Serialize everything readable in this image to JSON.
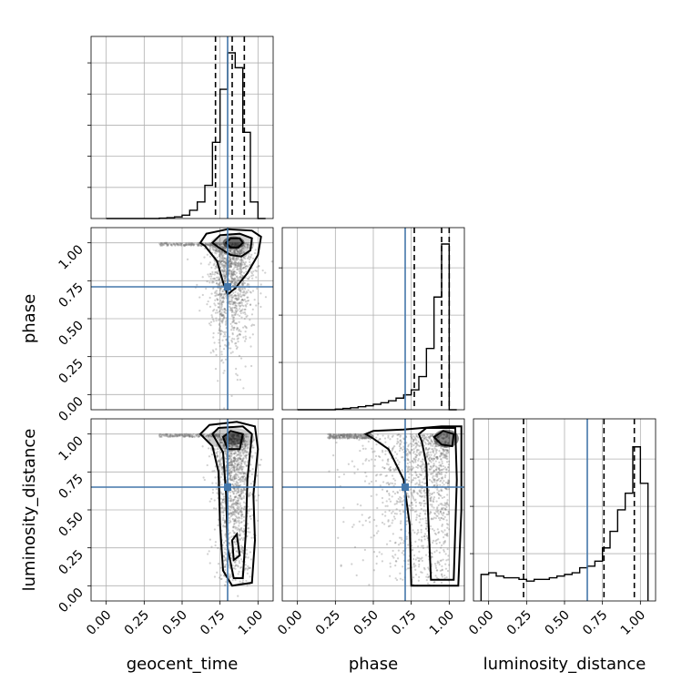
{
  "chart_data": {
    "type": "corner",
    "parameters": [
      "geocent_time",
      "phase",
      "luminosity_distance"
    ],
    "axis_range": [
      -0.1,
      1.1
    ],
    "tick_labels": [
      "0.00",
      "0.25",
      "0.50",
      "0.75",
      "1.00"
    ],
    "ticks": [
      0.0,
      0.25,
      0.5,
      0.75,
      1.0
    ],
    "truth": {
      "geocent_time": 0.8,
      "phase": 0.71,
      "luminosity_distance": 0.65
    },
    "injection_color": "#4477aa",
    "grid": true,
    "histograms": {
      "geocent_time": {
        "bin_edges": [
          0.0,
          0.05,
          0.1,
          0.15,
          0.2,
          0.25,
          0.3,
          0.35,
          0.4,
          0.45,
          0.5,
          0.55,
          0.6,
          0.65,
          0.7,
          0.75,
          0.8,
          0.85,
          0.9,
          0.95,
          1.0,
          1.05
        ],
        "heights": [
          0,
          0,
          0,
          0,
          0,
          0,
          0,
          0.002,
          0.005,
          0.01,
          0.02,
          0.05,
          0.1,
          0.2,
          0.46,
          0.78,
          1.0,
          0.91,
          0.52,
          0.1,
          0.0
        ],
        "quantiles": [
          0.72,
          0.83,
          0.91
        ]
      },
      "phase": {
        "bin_edges": [
          0.0,
          0.05,
          0.1,
          0.15,
          0.2,
          0.25,
          0.3,
          0.35,
          0.4,
          0.45,
          0.5,
          0.55,
          0.6,
          0.65,
          0.7,
          0.75,
          0.8,
          0.85,
          0.9,
          0.95,
          1.0,
          1.05
        ],
        "heights": [
          0,
          0,
          0,
          0,
          0,
          0.004,
          0.008,
          0.012,
          0.018,
          0.024,
          0.033,
          0.042,
          0.054,
          0.07,
          0.09,
          0.12,
          0.2,
          0.37,
          0.68,
          1.0,
          0.0
        ],
        "quantiles": [
          0.77,
          0.95,
          1.0
        ]
      },
      "luminosity_distance": {
        "bin_edges": [
          -0.05,
          0.0,
          0.05,
          0.1,
          0.15,
          0.2,
          0.25,
          0.3,
          0.35,
          0.4,
          0.45,
          0.5,
          0.55,
          0.6,
          0.65,
          0.7,
          0.75,
          0.8,
          0.85,
          0.9,
          0.95,
          1.0,
          1.05
        ],
        "heights": [
          0.16,
          0.17,
          0.15,
          0.14,
          0.14,
          0.13,
          0.12,
          0.13,
          0.13,
          0.14,
          0.15,
          0.16,
          0.17,
          0.2,
          0.21,
          0.24,
          0.32,
          0.42,
          0.55,
          0.65,
          0.93,
          0.71
        ],
        "quantiles": [
          0.23,
          0.76,
          0.96
        ]
      }
    }
  }
}
